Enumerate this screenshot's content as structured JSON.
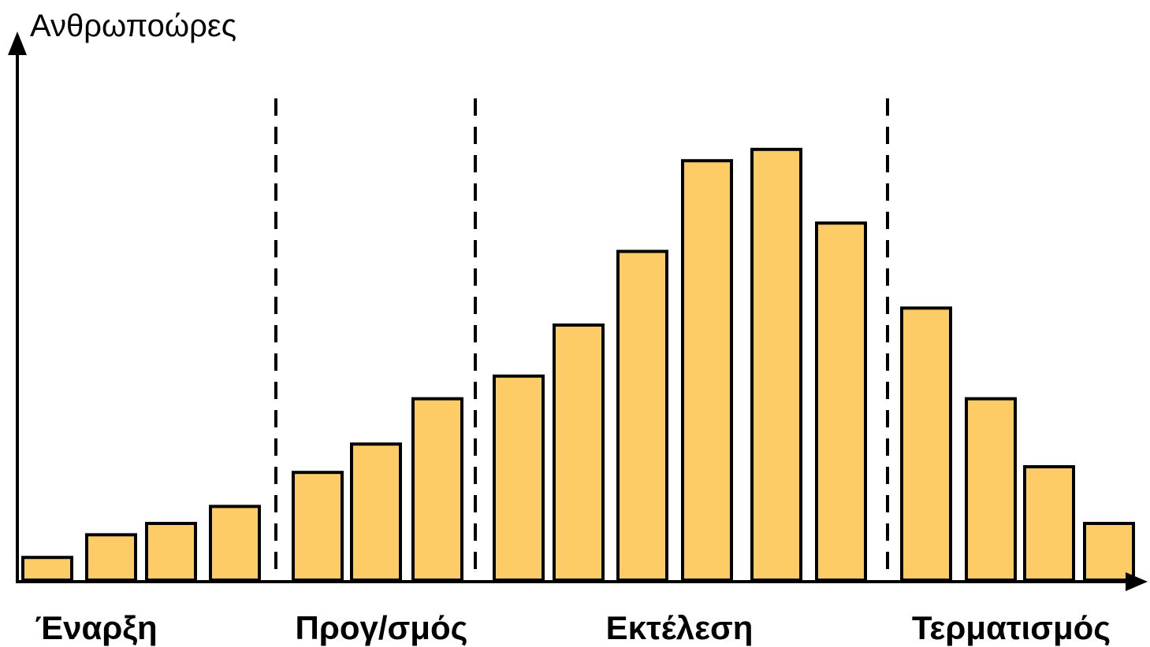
{
  "chart_data": {
    "type": "bar",
    "title": "",
    "ylabel": "Ανθρωποώρες",
    "xlabel": "",
    "bar_color": "#FECC66",
    "phases": [
      {
        "label": "Έναρξη",
        "values": [
          4,
          8,
          10,
          13
        ]
      },
      {
        "label": "Προγ/σμός",
        "values": [
          19,
          24,
          32
        ]
      },
      {
        "label": "Εκτέλεση",
        "values": [
          36,
          45,
          58,
          74,
          76,
          63
        ]
      },
      {
        "label": "Τερματισμός",
        "values": [
          48,
          32,
          20,
          10
        ]
      }
    ],
    "ylim": [
      0,
      100
    ],
    "grid": false,
    "legend": "none"
  }
}
